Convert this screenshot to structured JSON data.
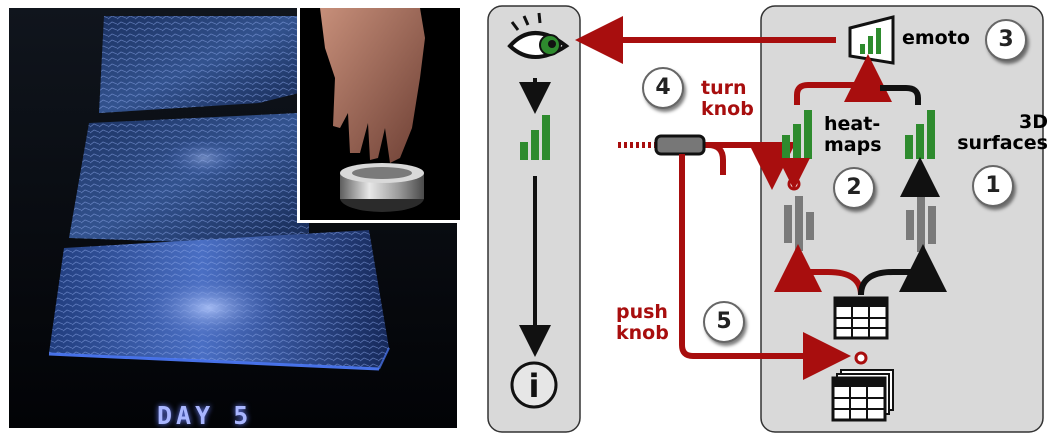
{
  "photo": {
    "caption": "DAY 5"
  },
  "diagram": {
    "emoto_label": "emoto",
    "heatmaps_label": "heat-\nmaps",
    "surfaces_label": "3D\nsurfaces",
    "turn_knob_label": "turn\nknob",
    "push_knob_label": "push\nknob",
    "info_glyph": "i",
    "steps": [
      "1",
      "2",
      "3",
      "4",
      "5"
    ],
    "colors": {
      "red": "#a80e0e",
      "green": "#2e8b2e",
      "panel": "#d9d9d9",
      "dark": "#111111"
    },
    "icons": [
      "eye-icon",
      "bar-chart-icon",
      "info-icon",
      "display-screen-icon",
      "table-icon",
      "table-stack-icon",
      "knob-icon",
      "physical-bar-icon"
    ]
  }
}
